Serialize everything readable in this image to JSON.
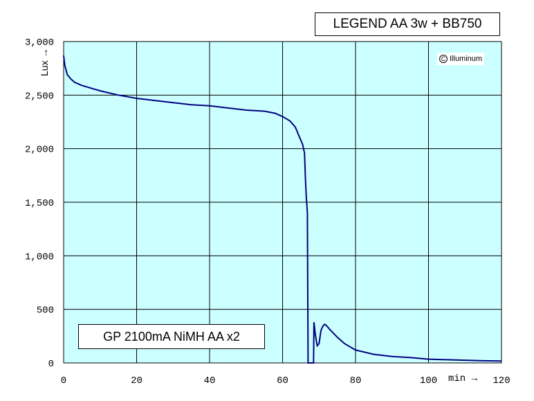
{
  "chart_data": {
    "type": "line",
    "title": "LEGEND AA 3w + BB750",
    "subtitle": "GP 2100mA NiMH AA x2",
    "watermark": "Illuminum",
    "xlabel": "min →",
    "ylabel": "Lux →",
    "xlim": [
      0,
      120
    ],
    "ylim": [
      0,
      3000
    ],
    "x_ticks": [
      "0",
      "20",
      "40",
      "60",
      "80",
      "100",
      "120"
    ],
    "y_ticks": [
      "0",
      "500",
      "1,000",
      "1,500",
      "2,000",
      "2,500",
      "3,000"
    ],
    "grid": true,
    "background_color": "#ccffff",
    "line_color": "#000080",
    "series": [
      {
        "x": [
          0,
          0.3,
          1,
          2,
          3,
          5,
          8,
          10,
          15,
          20,
          25,
          30,
          35,
          40,
          45,
          50,
          55,
          58,
          60,
          62,
          63.5,
          64.5,
          65.5,
          66,
          66.3,
          66.5,
          66.8,
          67,
          67.3,
          67.4,
          68.5,
          68.6,
          69,
          69.5,
          70,
          70.5,
          71,
          71.5,
          72,
          73,
          75,
          77,
          80,
          85,
          90,
          95,
          100,
          105,
          110,
          115,
          120
        ],
        "y": [
          2870,
          2780,
          2690,
          2650,
          2620,
          2590,
          2560,
          2540,
          2500,
          2470,
          2450,
          2430,
          2410,
          2400,
          2380,
          2360,
          2350,
          2330,
          2300,
          2260,
          2200,
          2120,
          2040,
          1960,
          1700,
          1550,
          1400,
          0,
          0,
          0,
          0,
          380,
          260,
          160,
          180,
          300,
          340,
          360,
          350,
          310,
          240,
          180,
          120,
          80,
          60,
          50,
          35,
          30,
          25,
          20,
          18
        ]
      }
    ]
  }
}
